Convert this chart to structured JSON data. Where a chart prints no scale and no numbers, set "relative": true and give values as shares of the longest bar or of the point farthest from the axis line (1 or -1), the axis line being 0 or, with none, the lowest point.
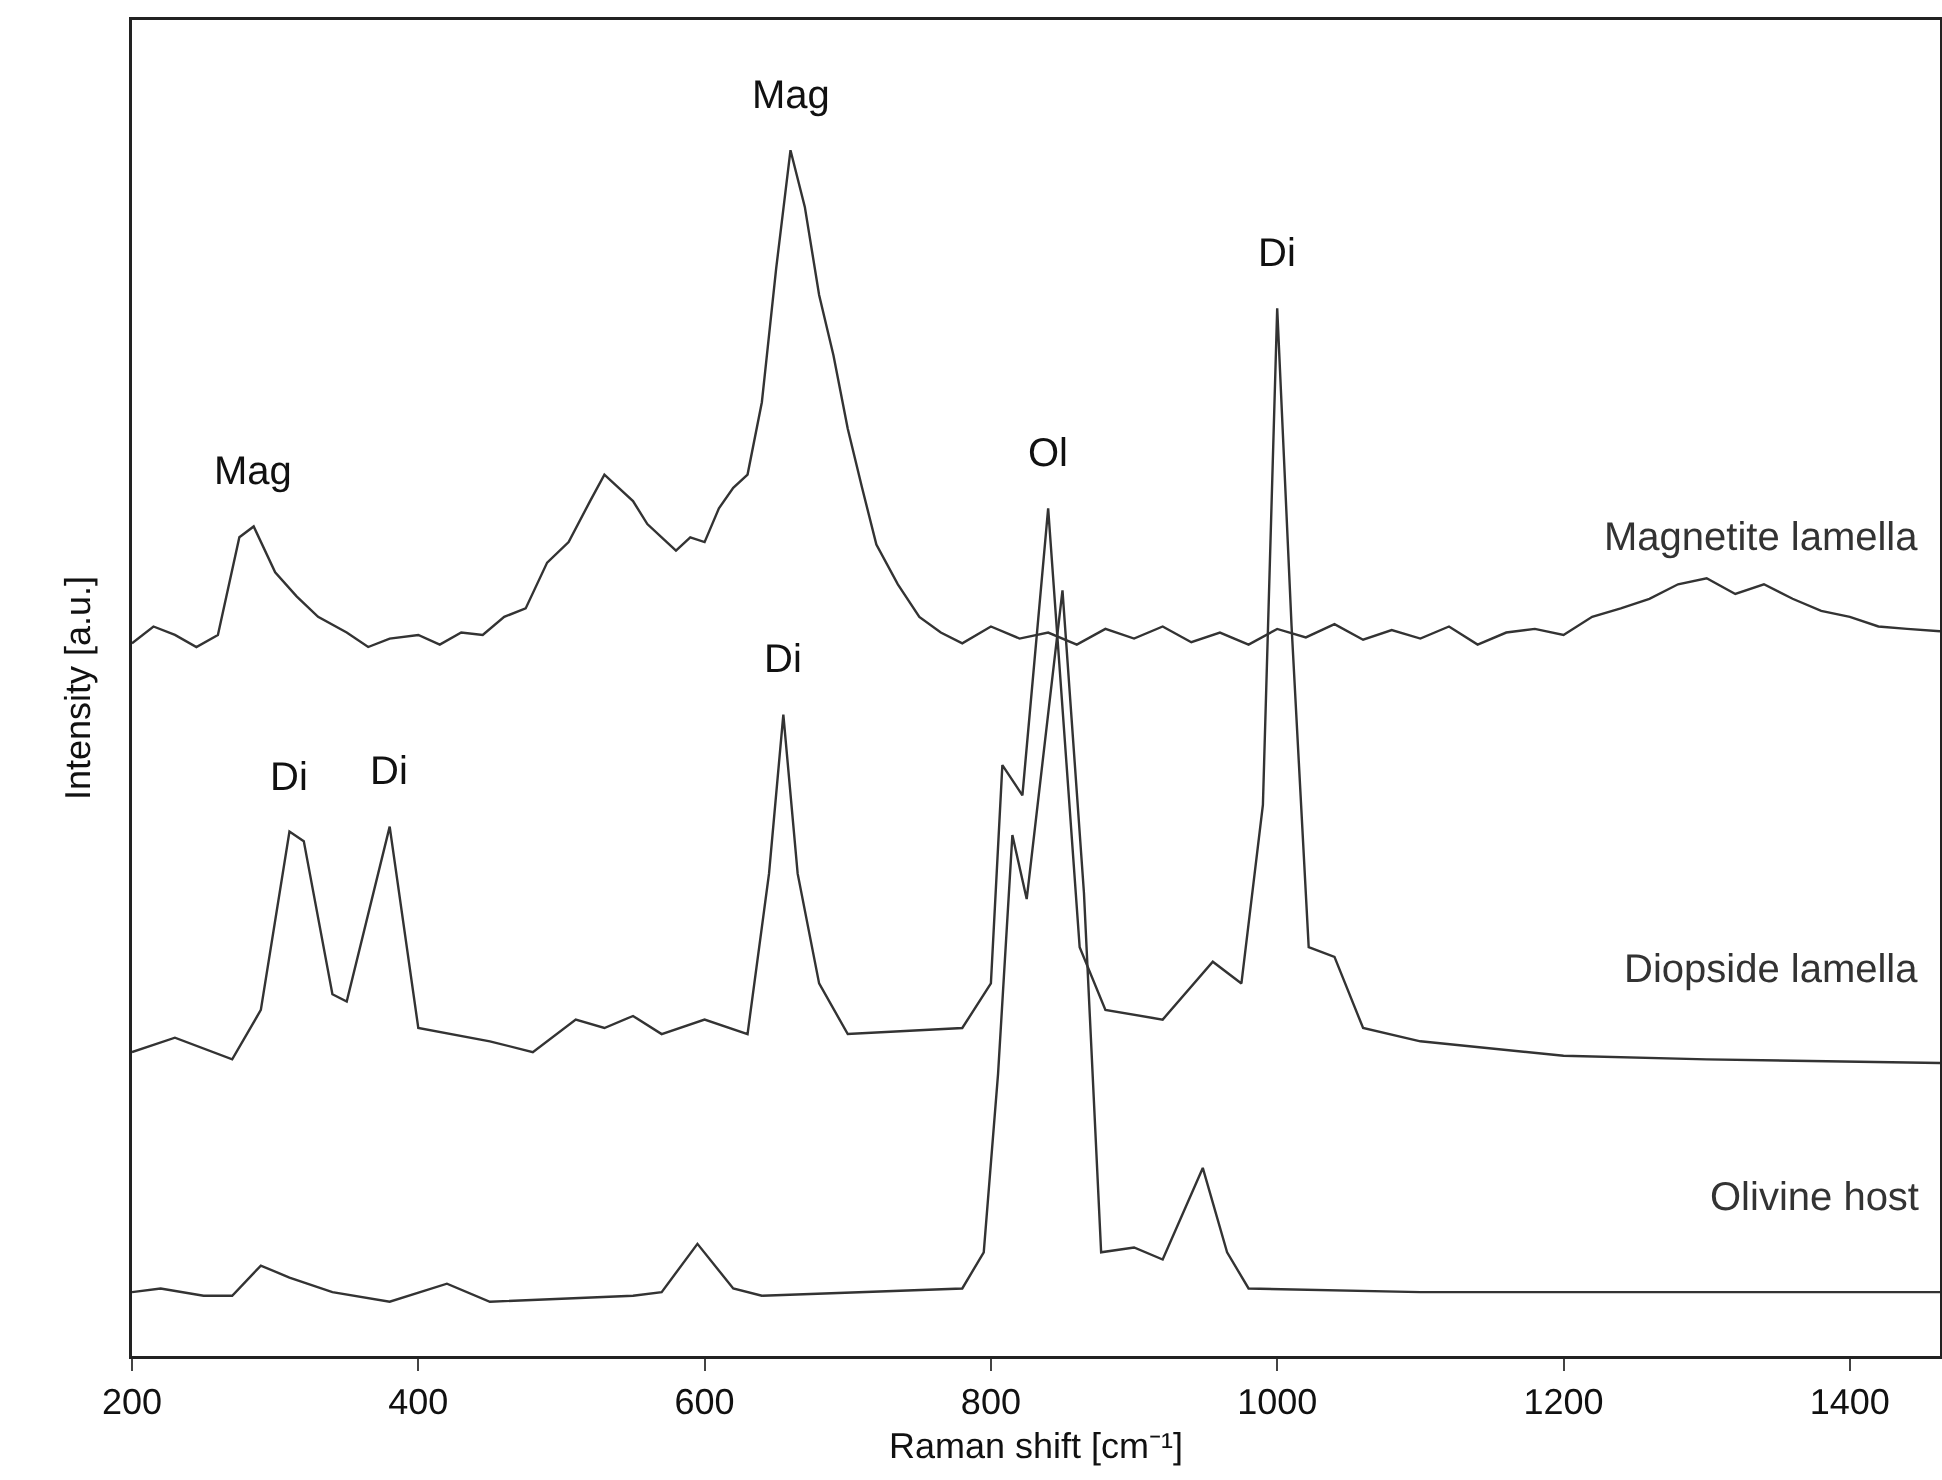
{
  "chart_data": {
    "type": "line",
    "relative": true,
    "xlabel": "Raman shift [cm⁻¹]",
    "ylabel": "Intensity [a.u.]",
    "xlim": [
      200,
      1463
    ],
    "xticks": [
      200,
      400,
      600,
      800,
      1000,
      1200,
      1400
    ],
    "tick_labels": "x",
    "grid": false,
    "legend": false,
    "marker": "none",
    "line_style": "solid",
    "series": [
      {
        "name": "Magnetite lamella",
        "color": "#333333",
        "x": [
          200,
          215,
          230,
          245,
          260,
          275,
          285,
          300,
          315,
          330,
          350,
          365,
          380,
          400,
          415,
          430,
          445,
          460,
          475,
          490,
          505,
          520,
          530,
          540,
          550,
          560,
          570,
          580,
          590,
          600,
          610,
          620,
          630,
          640,
          650,
          660,
          670,
          680,
          690,
          700,
          710,
          720,
          735,
          750,
          765,
          780,
          800,
          820,
          840,
          860,
          880,
          900,
          920,
          940,
          960,
          980,
          1000,
          1020,
          1040,
          1060,
          1080,
          1100,
          1120,
          1140,
          1160,
          1180,
          1200,
          1220,
          1240,
          1260,
          1280,
          1300,
          1320,
          1340,
          1360,
          1380,
          1400,
          1420,
          1440,
          1463
        ],
        "values": [
          0.591,
          0.605,
          0.598,
          0.588,
          0.598,
          0.679,
          0.688,
          0.65,
          0.63,
          0.613,
          0.6,
          0.588,
          0.595,
          0.598,
          0.59,
          0.6,
          0.598,
          0.613,
          0.62,
          0.658,
          0.675,
          0.709,
          0.731,
          0.72,
          0.709,
          0.69,
          0.679,
          0.668,
          0.679,
          0.675,
          0.703,
          0.72,
          0.731,
          0.791,
          0.902,
          1.0,
          0.953,
          0.88,
          0.83,
          0.769,
          0.72,
          0.673,
          0.64,
          0.613,
          0.6,
          0.591,
          0.605,
          0.595,
          0.6,
          0.59,
          0.603,
          0.595,
          0.605,
          0.592,
          0.6,
          0.59,
          0.603,
          0.596,
          0.607,
          0.594,
          0.602,
          0.595,
          0.605,
          0.59,
          0.6,
          0.603,
          0.598,
          0.613,
          0.62,
          0.628,
          0.64,
          0.645,
          0.632,
          0.64,
          0.628,
          0.618,
          0.613,
          0.605,
          0.603,
          0.601
        ]
      },
      {
        "name": "Diopside lamella",
        "color": "#333333",
        "x": [
          200,
          230,
          270,
          290,
          310,
          320,
          340,
          350,
          380,
          400,
          450,
          480,
          510,
          530,
          550,
          570,
          600,
          630,
          645,
          655,
          665,
          680,
          700,
          780,
          800,
          808,
          822,
          840,
          862,
          880,
          920,
          955,
          975,
          990,
          1000,
          1010,
          1022,
          1040,
          1060,
          1100,
          1200,
          1300,
          1463
        ],
        "values": [
          0.252,
          0.264,
          0.246,
          0.287,
          0.435,
          0.427,
          0.3,
          0.294,
          0.439,
          0.272,
          0.261,
          0.252,
          0.279,
          0.272,
          0.282,
          0.267,
          0.279,
          0.267,
          0.4,
          0.532,
          0.4,
          0.309,
          0.267,
          0.272,
          0.309,
          0.49,
          0.465,
          0.703,
          0.339,
          0.287,
          0.279,
          0.327,
          0.309,
          0.457,
          0.869,
          0.606,
          0.339,
          0.331,
          0.272,
          0.261,
          0.249,
          0.246,
          0.243
        ]
      },
      {
        "name": "Olivine host",
        "color": "#333333",
        "x": [
          200,
          220,
          250,
          270,
          290,
          310,
          340,
          380,
          420,
          450,
          550,
          570,
          595,
          620,
          640,
          780,
          795,
          805,
          815,
          825,
          850,
          865,
          877,
          900,
          920,
          948,
          965,
          980,
          1100,
          1463
        ],
        "values": [
          0.053,
          0.056,
          0.05,
          0.05,
          0.075,
          0.065,
          0.053,
          0.045,
          0.06,
          0.045,
          0.05,
          0.053,
          0.093,
          0.056,
          0.05,
          0.056,
          0.086,
          0.234,
          0.432,
          0.379,
          0.635,
          0.384,
          0.086,
          0.09,
          0.08,
          0.156,
          0.086,
          0.056,
          0.053,
          0.053
        ]
      }
    ],
    "annotations": [
      {
        "text": "Mag",
        "x": 285,
        "y": 0.688
      },
      {
        "text": "Mag",
        "x": 660,
        "y": 1.0
      },
      {
        "text": "Di",
        "x": 310,
        "y": 0.435
      },
      {
        "text": "Di",
        "x": 380,
        "y": 0.439
      },
      {
        "text": "Di",
        "x": 655,
        "y": 0.532
      },
      {
        "text": "Ol",
        "x": 840,
        "y": 0.703
      },
      {
        "text": "Di",
        "x": 1000,
        "y": 0.869
      }
    ]
  }
}
